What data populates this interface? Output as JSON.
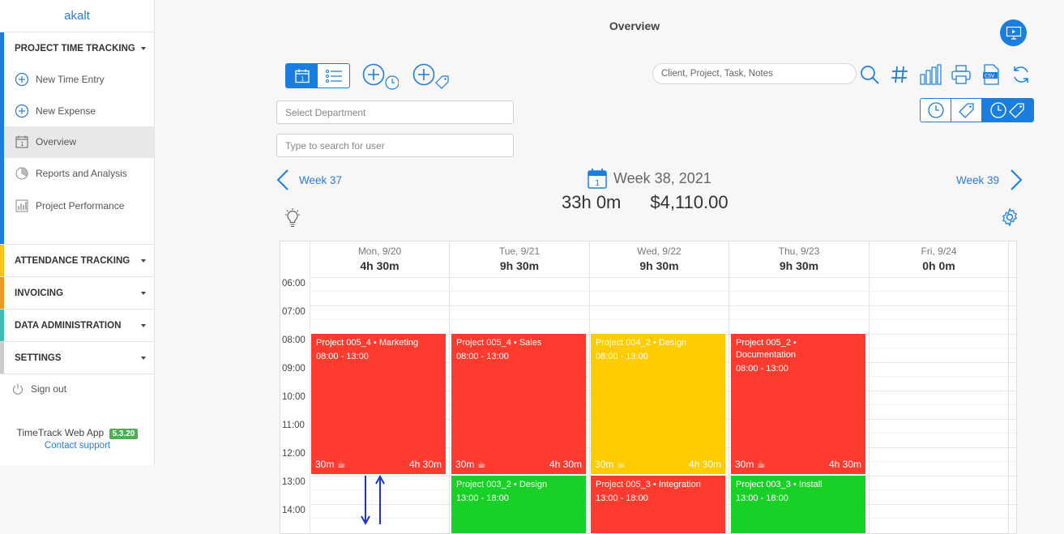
{
  "sidebar": {
    "brand": "akalt",
    "sections": [
      {
        "label": "PROJECT TIME TRACKING",
        "color": "#1a7ee0"
      },
      {
        "label": "ATTENDANCE TRACKING",
        "color": "#f5c518"
      },
      {
        "label": "INVOICING",
        "color": "#f39a1e"
      },
      {
        "label": "DATA ADMINISTRATION",
        "color": "#3cbfae"
      },
      {
        "label": "SETTINGS",
        "color": "#cccccc"
      }
    ],
    "items": [
      {
        "label": "New Time Entry",
        "icon": "plus-circle-icon"
      },
      {
        "label": "New Expense",
        "icon": "plus-circle-icon"
      },
      {
        "label": "Overview",
        "icon": "calendar-icon"
      },
      {
        "label": "Reports and Analysis",
        "icon": "pie-chart-icon"
      },
      {
        "label": "Project Performance",
        "icon": "bar-chart-icon"
      }
    ],
    "signout": "Sign out",
    "app_name": "TimeTrack Web App",
    "version": "5.3.20",
    "support": "Contact support"
  },
  "header": {
    "title": "Overview"
  },
  "filters": {
    "department_placeholder": "Select Department",
    "user_placeholder": "Type to search for user",
    "search_placeholder": "Client, Project, Task, Notes"
  },
  "week": {
    "prev": "Week 37",
    "current": "Week 38, 2021",
    "next": "Week 39",
    "total_hours": "33h 0m",
    "total_amount": "$4,110.00"
  },
  "calendar": {
    "days": [
      {
        "name": "Mon, 9/20",
        "total": "4h 30m"
      },
      {
        "name": "Tue, 9/21",
        "total": "9h 30m"
      },
      {
        "name": "Wed, 9/22",
        "total": "9h 30m"
      },
      {
        "name": "Thu, 9/23",
        "total": "9h 30m"
      },
      {
        "name": "Fri, 9/24",
        "total": "0h 0m"
      }
    ],
    "hours": [
      "06:00",
      "07:00",
      "08:00",
      "09:00",
      "10:00",
      "11:00",
      "12:00",
      "13:00",
      "14:00"
    ],
    "events": [
      {
        "title": "Project 005_4 • Marketing",
        "time": "08:00 - 13:00",
        "break": "30m",
        "duration": "4h 30m",
        "color": "#ff3b30"
      },
      {
        "title": "Project 005_4 • Sales",
        "time": "08:00 - 13:00",
        "break": "30m",
        "duration": "4h 30m",
        "color": "#ff3b30"
      },
      {
        "title": "Project 004_2 • Design",
        "time": "08:00 - 13:00",
        "break": "30m",
        "duration": "4h 30m",
        "color": "#ffcc00"
      },
      {
        "title": "Project 005_2 • Documentation",
        "time": "08:00 - 13:00",
        "break": "30m",
        "duration": "4h 30m",
        "color": "#ff3b30"
      },
      {
        "title": "Project 003_2 • Design",
        "time": "13:00 - 18:00",
        "color": "#19d126"
      },
      {
        "title": "Project 005_3 • Integration",
        "time": "13:00 - 18:00",
        "color": "#ff3b30"
      },
      {
        "title": "Project 003_3 • Install",
        "time": "13:00 - 18:00",
        "color": "#19d126"
      }
    ]
  }
}
